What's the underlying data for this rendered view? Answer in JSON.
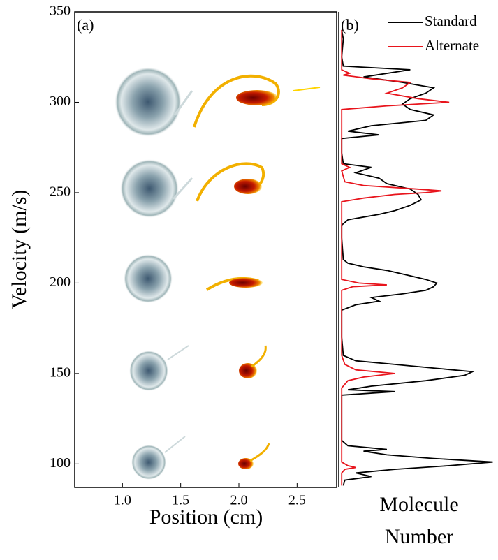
{
  "chart_data": [
    {
      "type": "image",
      "panel_label": "(a)",
      "x_label": "Position (cm)",
      "y_label": "Velocity (m/s)",
      "xlim": [
        0.59,
        2.84
      ],
      "xticks": [
        {
          "value": 1,
          "label": "1.0"
        },
        1.5,
        {
          "value": 2,
          "label": "2.0"
        },
        2.5
      ],
      "ylim": [
        87,
        350
      ],
      "yticks": [
        100,
        150,
        200,
        250,
        300,
        350
      ]
    },
    {
      "type": "line",
      "panel_label": "(b)",
      "x_label": "Molecule Number",
      "orientation": "vertical",
      "ylim": [
        87,
        350
      ],
      "xlim": [
        0,
        1
      ],
      "legend": "upper right",
      "series": [
        {
          "name": "Standard",
          "color": "#000000",
          "x": [
            88,
            91,
            93,
            95,
            97,
            99,
            101,
            103,
            105,
            107,
            108,
            110,
            113,
            120,
            138,
            140,
            141,
            143,
            146,
            149,
            151,
            153,
            155,
            157,
            160,
            170,
            185,
            188,
            190,
            192,
            194,
            196,
            198,
            200,
            202,
            204,
            207,
            209,
            211,
            213,
            225,
            232,
            235,
            238,
            240,
            243,
            246,
            249,
            252,
            255,
            258,
            261,
            264,
            266,
            272,
            280,
            282,
            284,
            287,
            290,
            293,
            296,
            299,
            302,
            305,
            308,
            311,
            314,
            318,
            320,
            325,
            335,
            340
          ],
          "values": [
            0.02,
            0.03,
            0.2,
            0.1,
            0.35,
            0.7,
            0.98,
            0.6,
            0.3,
            0.15,
            0.3,
            0.05,
            0.01,
            0.01,
            0.01,
            0.35,
            0.05,
            0.2,
            0.55,
            0.8,
            0.85,
            0.6,
            0.35,
            0.1,
            0.02,
            0.01,
            0.01,
            0.1,
            0.25,
            0.2,
            0.4,
            0.55,
            0.6,
            0.62,
            0.55,
            0.45,
            0.3,
            0.15,
            0.05,
            0.02,
            0.01,
            0.01,
            0.05,
            0.25,
            0.35,
            0.45,
            0.52,
            0.5,
            0.45,
            0.3,
            0.25,
            0.1,
            0.2,
            0.02,
            0.01,
            0.01,
            0.25,
            0.05,
            0.2,
            0.55,
            0.6,
            0.45,
            0.4,
            0.45,
            0.55,
            0.6,
            0.4,
            0.15,
            0.45,
            0.02,
            0.01,
            0.02,
            0.01
          ]
        },
        {
          "name": "Alternate",
          "color": "#e8141c",
          "x": [
            88,
            95,
            97,
            98,
            99,
            101,
            120,
            142,
            146,
            148,
            150,
            152,
            155,
            160,
            180,
            196,
            198,
            199,
            200,
            202,
            225,
            245,
            247,
            249,
            250,
            251,
            252,
            254,
            256,
            262,
            264,
            266,
            280,
            296,
            298,
            300,
            302,
            305,
            308,
            311,
            313,
            315,
            316,
            318,
            340
          ],
          "values": [
            0.01,
            0.01,
            0.03,
            0.1,
            0.05,
            0.01,
            0.01,
            0.01,
            0.05,
            0.15,
            0.35,
            0.1,
            0.03,
            0.01,
            0.01,
            0.01,
            0.08,
            0.3,
            0.12,
            0.01,
            0.01,
            0.01,
            0.15,
            0.35,
            0.55,
            0.65,
            0.5,
            0.15,
            0.03,
            0.01,
            0.06,
            0.01,
            0.01,
            0.01,
            0.3,
            0.7,
            0.5,
            0.3,
            0.4,
            0.45,
            0.2,
            0.02,
            0.06,
            0.01,
            0.01
          ]
        }
      ]
    }
  ]
}
